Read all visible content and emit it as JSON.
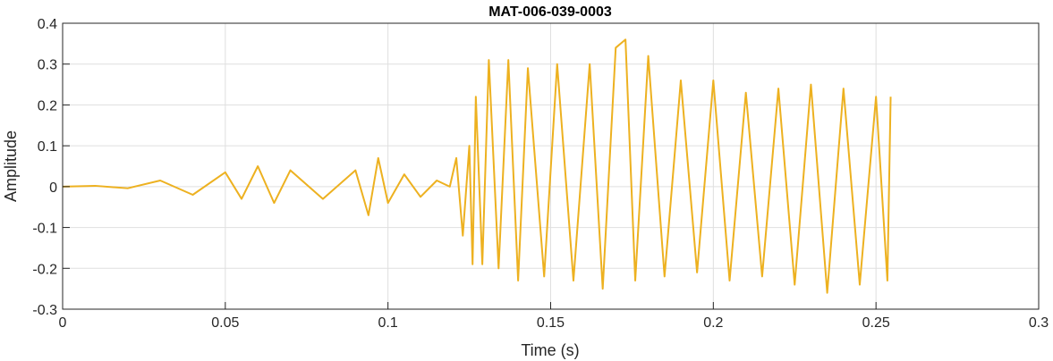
{
  "chart_data": {
    "type": "line",
    "title": "MAT-006-039-0003",
    "xlabel": "Time (s)",
    "ylabel": "Amplitude",
    "xlim": [
      0,
      0.3
    ],
    "ylim": [
      -0.3,
      0.4
    ],
    "x_ticks": [
      0,
      0.05,
      0.1,
      0.15,
      0.2,
      0.25,
      0.3
    ],
    "x_tick_labels": [
      "0",
      "0.05",
      "0.1",
      "0.15",
      "0.2",
      "0.25",
      "0.3"
    ],
    "y_ticks": [
      -0.3,
      -0.2,
      -0.1,
      0,
      0.1,
      0.2,
      0.3,
      0.4
    ],
    "y_tick_labels": [
      "-0.3",
      "-0.2",
      "-0.1",
      "0",
      "0.1",
      "0.2",
      "0.3",
      "0.4"
    ],
    "grid": true,
    "line_color": "#EDB120",
    "series": [
      {
        "points": [
          [
            0.0,
            0.0
          ],
          [
            0.01,
            0.002
          ],
          [
            0.02,
            -0.004
          ],
          [
            0.03,
            0.015
          ],
          [
            0.04,
            -0.02
          ],
          [
            0.05,
            0.035
          ],
          [
            0.055,
            -0.03
          ],
          [
            0.06,
            0.05
          ],
          [
            0.065,
            -0.04
          ],
          [
            0.07,
            0.04
          ],
          [
            0.08,
            -0.03
          ],
          [
            0.09,
            0.04
          ],
          [
            0.094,
            -0.07
          ],
          [
            0.097,
            0.07
          ],
          [
            0.1,
            -0.04
          ],
          [
            0.105,
            0.03
          ],
          [
            0.11,
            -0.025
          ],
          [
            0.115,
            0.015
          ],
          [
            0.119,
            0.0
          ],
          [
            0.121,
            0.07
          ],
          [
            0.123,
            -0.12
          ],
          [
            0.125,
            0.1
          ],
          [
            0.126,
            -0.19
          ],
          [
            0.127,
            0.22
          ],
          [
            0.129,
            -0.19
          ],
          [
            0.131,
            0.31
          ],
          [
            0.134,
            -0.2
          ],
          [
            0.137,
            0.31
          ],
          [
            0.14,
            -0.23
          ],
          [
            0.143,
            0.29
          ],
          [
            0.148,
            -0.22
          ],
          [
            0.152,
            0.3
          ],
          [
            0.157,
            -0.23
          ],
          [
            0.162,
            0.3
          ],
          [
            0.166,
            -0.25
          ],
          [
            0.17,
            0.34
          ],
          [
            0.173,
            0.36
          ],
          [
            0.176,
            -0.23
          ],
          [
            0.18,
            0.32
          ],
          [
            0.185,
            -0.22
          ],
          [
            0.19,
            0.26
          ],
          [
            0.195,
            -0.21
          ],
          [
            0.2,
            0.26
          ],
          [
            0.205,
            -0.23
          ],
          [
            0.21,
            0.23
          ],
          [
            0.215,
            -0.22
          ],
          [
            0.22,
            0.24
          ],
          [
            0.225,
            -0.24
          ],
          [
            0.23,
            0.25
          ],
          [
            0.235,
            -0.26
          ],
          [
            0.24,
            0.24
          ],
          [
            0.245,
            -0.24
          ],
          [
            0.25,
            0.22
          ],
          [
            0.2535,
            -0.23
          ],
          [
            0.2545,
            0.22
          ]
        ]
      }
    ]
  }
}
